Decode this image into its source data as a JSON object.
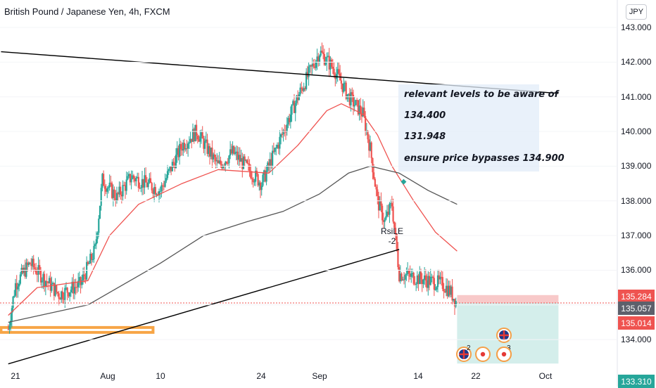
{
  "header": {
    "title": "British Pound / Japanese Yen, 4h, FXCM",
    "currency": "JPY"
  },
  "annotation": {
    "lines": [
      "relevant levels to be aware of",
      "134.400",
      "131.948",
      "ensure price bypasses 134.900"
    ]
  },
  "indicator_label": {
    "name": "RsiLE",
    "value": "-2"
  },
  "price_tags": [
    {
      "label": "135.284",
      "color": "#ef5350"
    },
    {
      "label": "135.057",
      "color": "#5d606b"
    },
    {
      "label": "135.014",
      "color": "#ef5350"
    },
    {
      "label": "133.310",
      "color": "#26a69a"
    }
  ],
  "colors": {
    "up": "#26a69a",
    "down": "#ef5350",
    "ema_fast": "#ef5350",
    "ma_slow": "#555555",
    "trendline": "#000000",
    "support_zone": "#f7a546",
    "stop_zone": "#f8c9c9",
    "target_zone": "#cdebe8"
  },
  "chart_data": {
    "type": "candlestick",
    "symbol": "GBPJPY",
    "timeframe": "4h",
    "ylim": [
      133.31,
      143.15
    ],
    "y_ticks": [
      "143.000",
      "142.000",
      "141.000",
      "140.000",
      "139.000",
      "138.000",
      "137.000",
      "136.000",
      "135.000",
      "134.000"
    ],
    "x_ticks": [
      "21",
      "Aug",
      "10",
      "24",
      "Sep",
      "14",
      "22",
      "Oct"
    ],
    "anchors": [
      {
        "date": "Jul 20",
        "price": 134.3
      },
      {
        "date": "Jul 21",
        "price": 135.6
      },
      {
        "date": "Jul 23",
        "price": 136.2
      },
      {
        "date": "Jul 27",
        "price": 135.3
      },
      {
        "date": "Jul 30",
        "price": 135.6
      },
      {
        "date": "Aug 1",
        "price": 136.6
      },
      {
        "date": "Aug 2",
        "price": 138.6
      },
      {
        "date": "Aug 4",
        "price": 138.1
      },
      {
        "date": "Aug 6",
        "price": 138.7
      },
      {
        "date": "Aug 10",
        "price": 138.3
      },
      {
        "date": "Aug 13",
        "price": 139.6
      },
      {
        "date": "Aug 15",
        "price": 140.0
      },
      {
        "date": "Aug 18",
        "price": 139.0
      },
      {
        "date": "Aug 20",
        "price": 139.4
      },
      {
        "date": "Aug 24",
        "price": 138.5
      },
      {
        "date": "Aug 26",
        "price": 139.5
      },
      {
        "date": "Aug 29",
        "price": 141.0
      },
      {
        "date": "Sep 1",
        "price": 142.3
      },
      {
        "date": "Sep 3",
        "price": 141.8
      },
      {
        "date": "Sep 5",
        "price": 141.0
      },
      {
        "date": "Sep 7",
        "price": 140.5
      },
      {
        "date": "Sep 8",
        "price": 139.5
      },
      {
        "date": "Sep 9",
        "price": 138.0
      },
      {
        "date": "Sep 10",
        "price": 137.4
      },
      {
        "date": "Sep 11",
        "price": 137.9
      },
      {
        "date": "Sep 12",
        "price": 135.9
      },
      {
        "date": "Sep 14",
        "price": 135.8
      },
      {
        "date": "Sep 16",
        "price": 135.7
      },
      {
        "date": "Sep 18",
        "price": 135.6
      },
      {
        "date": "Sep 19",
        "price": 135.4
      },
      {
        "date": "Sep 20",
        "price": 135.05
      }
    ],
    "ema_fast": [
      {
        "date": "Jul 20",
        "price": 134.7
      },
      {
        "date": "Jul 24",
        "price": 135.5
      },
      {
        "date": "Jul 31",
        "price": 135.7
      },
      {
        "date": "Aug 3",
        "price": 137.0
      },
      {
        "date": "Aug 7",
        "price": 137.9
      },
      {
        "date": "Aug 13",
        "price": 138.5
      },
      {
        "date": "Aug 18",
        "price": 138.9
      },
      {
        "date": "Aug 25",
        "price": 138.8
      },
      {
        "date": "Aug 29",
        "price": 139.6
      },
      {
        "date": "Sep 2",
        "price": 140.6
      },
      {
        "date": "Sep 4",
        "price": 140.8
      },
      {
        "date": "Sep 7",
        "price": 140.5
      },
      {
        "date": "Sep 9",
        "price": 139.9
      },
      {
        "date": "Sep 11",
        "price": 139.0
      },
      {
        "date": "Sep 14",
        "price": 138.0
      },
      {
        "date": "Sep 17",
        "price": 137.1
      },
      {
        "date": "Sep 20",
        "price": 136.55
      }
    ],
    "ma_slow": [
      {
        "date": "Jul 20",
        "price": 134.5
      },
      {
        "date": "Jul 31",
        "price": 135.0
      },
      {
        "date": "Aug 5",
        "price": 135.6
      },
      {
        "date": "Aug 10",
        "price": 136.2
      },
      {
        "date": "Aug 16",
        "price": 137.0
      },
      {
        "date": "Aug 22",
        "price": 137.4
      },
      {
        "date": "Aug 27",
        "price": 137.7
      },
      {
        "date": "Sep 1",
        "price": 138.2
      },
      {
        "date": "Sep 5",
        "price": 138.8
      },
      {
        "date": "Sep 8",
        "price": 139.0
      },
      {
        "date": "Sep 12",
        "price": 138.8
      },
      {
        "date": "Sep 16",
        "price": 138.3
      },
      {
        "date": "Sep 20",
        "price": 137.9
      }
    ],
    "trendlines": [
      {
        "from": {
          "date": "Jul 19",
          "price": 142.3
        },
        "to": {
          "date": "Oct 4",
          "price": 141.1
        }
      },
      {
        "from": {
          "date": "Jul 20",
          "price": 133.3
        },
        "to": {
          "date": "Sep 12",
          "price": 136.6
        }
      }
    ],
    "zones": [
      {
        "name": "support",
        "from_date": "Jul 19",
        "to_date": "Aug 9",
        "low": 134.2,
        "high": 134.35
      },
      {
        "name": "stop",
        "from_date": "Sep 20",
        "to_date": "Oct 4",
        "low": 135.057,
        "high": 135.284
      },
      {
        "name": "target",
        "from_date": "Sep 20",
        "to_date": "Oct 4",
        "low": 133.31,
        "high": 135.057
      }
    ],
    "current_price": 135.057,
    "events": [
      {
        "date": "Sep 20",
        "type": "gb",
        "count": "2"
      },
      {
        "date": "Sep 22",
        "type": "jp"
      },
      {
        "date": "Sep 23",
        "type": "jp",
        "count": "3"
      },
      {
        "date": "Sep 24",
        "type": "gb"
      },
      {
        "date": "Sep 24",
        "type": "jp"
      }
    ]
  }
}
